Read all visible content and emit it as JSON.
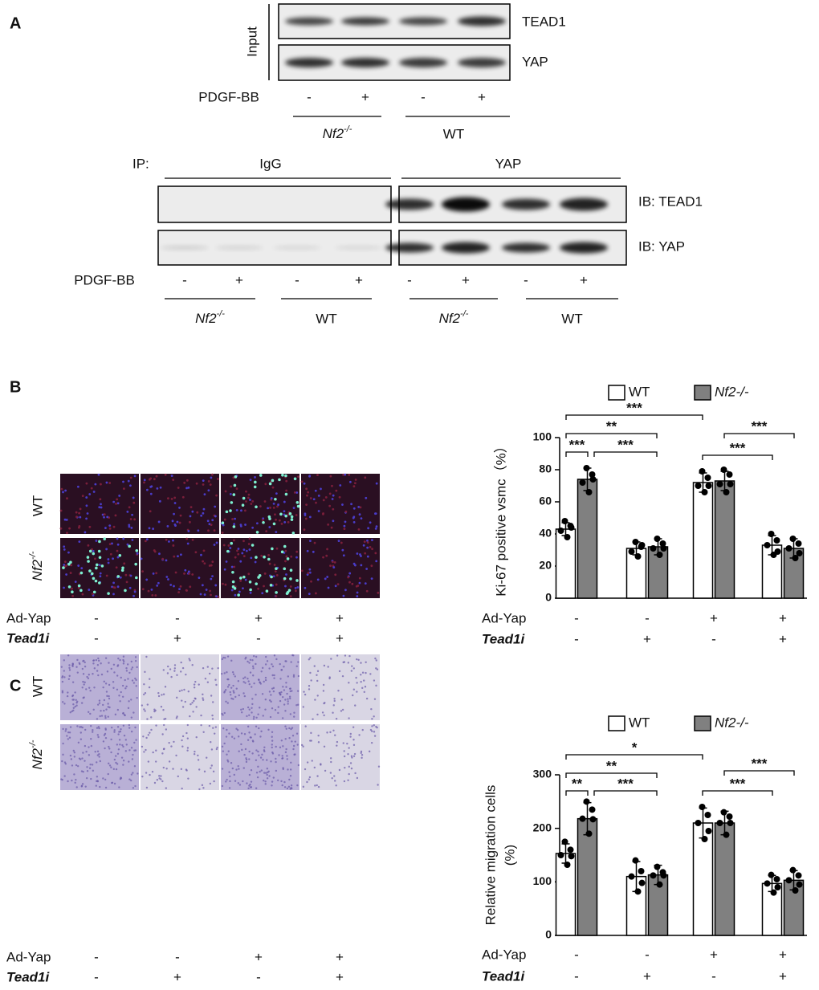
{
  "panel_labels": [
    "A",
    "B",
    "C"
  ],
  "panel_a": {
    "input_label": "Input",
    "input_blots": [
      "TEAD1",
      "YAP"
    ],
    "treatment_label": "PDGF-BB",
    "input_treatment": [
      "-",
      "+",
      "-",
      "+"
    ],
    "input_genotypes": [
      {
        "gene": "Nf2",
        "sup": "-/-"
      },
      "WT"
    ],
    "ip_label": "IP:",
    "ip_groups": [
      "IgG",
      "YAP"
    ],
    "ib_blots": [
      "IB: TEAD1",
      "IB: YAP"
    ],
    "ip_treatment_label": "PDGF-BB",
    "ip_treatment": [
      "-",
      "+",
      "-",
      "+",
      "-",
      "+",
      "-",
      "+"
    ],
    "ip_genotypes": [
      {
        "gene": "Nf2",
        "sup": "-/-"
      },
      "WT",
      {
        "gene": "Nf2",
        "sup": "-/-"
      },
      "WT"
    ]
  },
  "panel_b": {
    "row_labels": [
      "WT",
      {
        "gene": "Nf2",
        "sup": "-/-"
      }
    ],
    "conditions": [
      {
        "label": "Ad-Yap",
        "values": [
          "-",
          "-",
          "+",
          "+"
        ]
      },
      {
        "label": "Tead1i",
        "values": [
          "-",
          "+",
          "-",
          "+"
        ]
      }
    ]
  },
  "panel_c": {
    "row_labels": [
      "WT",
      {
        "gene": "Nf2",
        "sup": "-/-"
      }
    ],
    "conditions": [
      {
        "label": "Ad-Yap",
        "values": [
          "-",
          "-",
          "+",
          "+"
        ]
      },
      {
        "label": "Tead1i",
        "values": [
          "-",
          "+",
          "-",
          "+"
        ]
      }
    ]
  },
  "chart_data": [
    {
      "type": "bar",
      "y_label": [
        "Ki-67 positive vsmc（%）"
      ],
      "ylim": [
        0,
        100
      ],
      "yticks": [
        0,
        20,
        40,
        60,
        80,
        100
      ],
      "series": [
        {
          "name": "WT",
          "color": "#ffffff",
          "values": [
            43,
            31,
            72,
            33
          ],
          "errors": [
            4,
            4,
            6,
            6
          ],
          "points": [
            [
              48,
              45,
              42,
              38,
              44
            ],
            [
              35,
              32,
              29,
              26,
              33
            ],
            [
              79,
              75,
              70,
              66,
              70
            ],
            [
              40,
              36,
              33,
              27,
              29
            ]
          ]
        },
        {
          "name": "Nf2-/-",
          "color": "#808080",
          "values": [
            74,
            32,
            73,
            31
          ],
          "errors": [
            7,
            5,
            6,
            6
          ],
          "points": [
            [
              81,
              77,
              72,
              66,
              74
            ],
            [
              37,
              34,
              31,
              27,
              31
            ],
            [
              80,
              77,
              71,
              66,
              71
            ],
            [
              37,
              34,
              31,
              25,
              28
            ]
          ]
        }
      ],
      "significance": [
        "***",
        "**",
        "***",
        "***",
        "***",
        "***"
      ],
      "condition_rows": [
        {
          "label": "Ad-Yap",
          "values": [
            "-",
            "-",
            "+",
            "+"
          ]
        },
        {
          "label": "Tead1i",
          "values": [
            "-",
            "+",
            "-",
            "+"
          ]
        }
      ]
    },
    {
      "type": "bar",
      "y_label": [
        "Relative migration cells",
        "(%)"
      ],
      "ylim": [
        0,
        300
      ],
      "yticks": [
        0,
        100,
        200,
        300
      ],
      "series": [
        {
          "name": "WT",
          "color": "#ffffff",
          "values": [
            153,
            110,
            210,
            97
          ],
          "errors": [
            18,
            28,
            28,
            15
          ],
          "points": [
            [
              175,
              160,
              150,
              132,
              148
            ],
            [
              140,
              120,
              110,
              82,
              98
            ],
            [
              240,
              225,
              210,
              180,
              195
            ],
            [
              113,
              105,
              97,
              80,
              90
            ]
          ]
        },
        {
          "name": "Nf2-/-",
          "color": "#808080",
          "values": [
            218,
            113,
            210,
            103
          ],
          "errors": [
            30,
            18,
            22,
            18
          ],
          "points": [
            [
              250,
              235,
              218,
              190,
              217
            ],
            [
              128,
              118,
              112,
              95,
              112
            ],
            [
              230,
              222,
              210,
              188,
              210
            ],
            [
              122,
              112,
              103,
              84,
              95
            ]
          ]
        }
      ],
      "significance": [
        "*",
        "**",
        "**",
        "***",
        "***",
        "***"
      ],
      "condition_rows": [
        {
          "label": "Ad-Yap",
          "values": [
            "-",
            "-",
            "+",
            "+"
          ]
        },
        {
          "label": "Tead1i",
          "values": [
            "-",
            "+",
            "-",
            "+"
          ]
        }
      ]
    }
  ]
}
